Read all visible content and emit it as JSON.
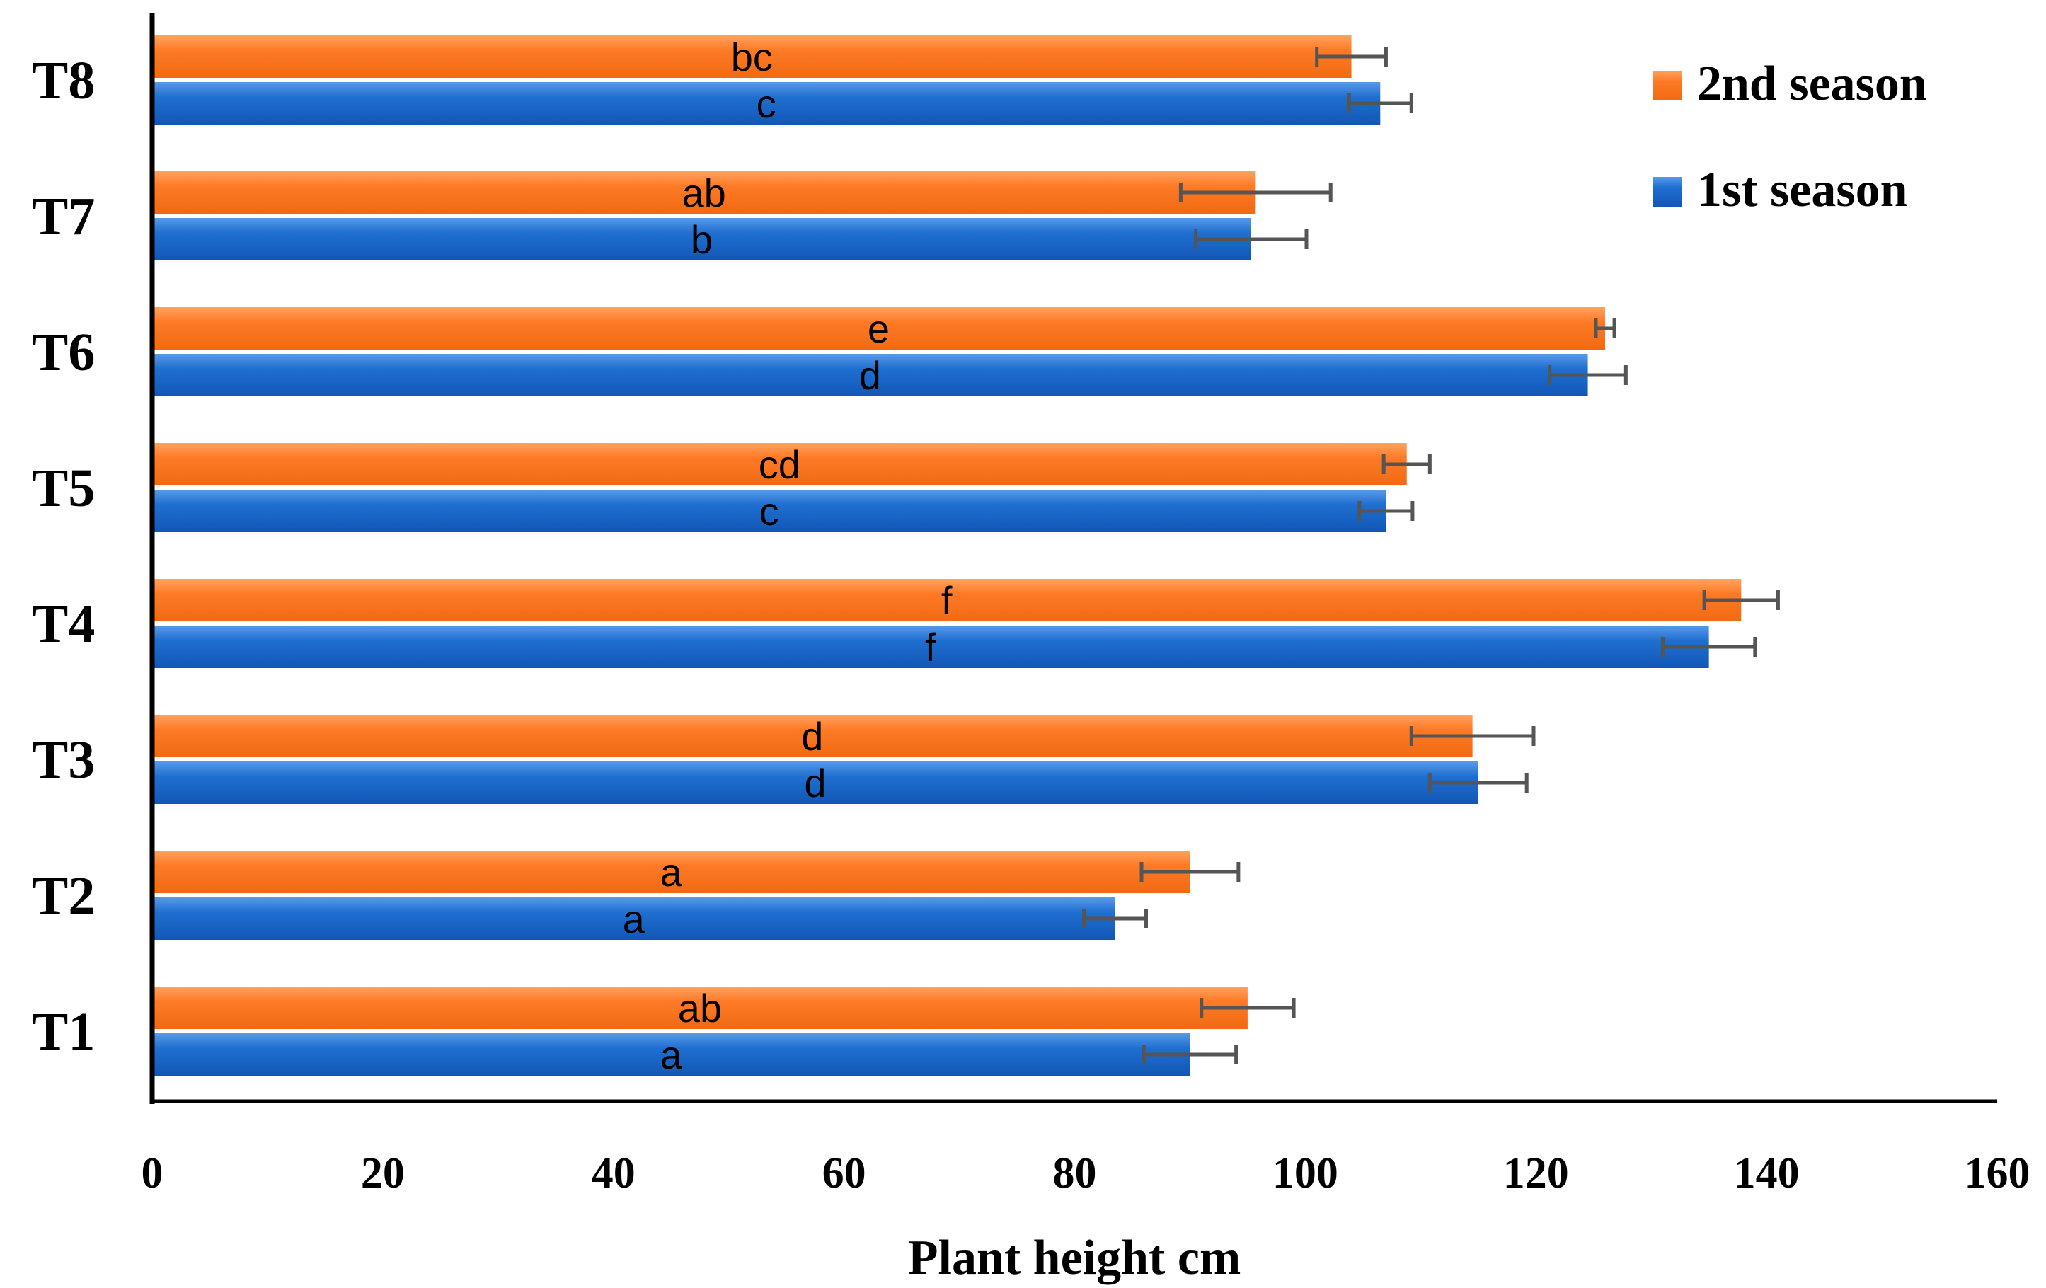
{
  "chart_data": {
    "type": "bar",
    "orientation": "horizontal",
    "title": "",
    "xlabel": "Plant height cm",
    "ylabel": "",
    "xlim": [
      0,
      160
    ],
    "xticks": [
      0,
      20,
      40,
      60,
      80,
      100,
      120,
      140,
      160
    ],
    "categories": [
      "T1",
      "T2",
      "T3",
      "T4",
      "T5",
      "T6",
      "T7",
      "T8"
    ],
    "series": [
      {
        "name": "1st season",
        "color": "#1f6fd1",
        "values": [
          90,
          83.5,
          115,
          135,
          107,
          124.5,
          95.3,
          106.5
        ],
        "errors": [
          4,
          2.7,
          4.2,
          4,
          2.3,
          3.3,
          4.8,
          2.7
        ],
        "letters": [
          "a",
          "a",
          "d",
          "f",
          "c",
          "d",
          "b",
          "c"
        ]
      },
      {
        "name": "2nd season",
        "color": "#ff7a26",
        "values": [
          95,
          90,
          114.5,
          137.8,
          108.8,
          126,
          95.7,
          104
        ],
        "errors": [
          4,
          4.2,
          5.3,
          3.2,
          2,
          0.8,
          6.5,
          3
        ],
        "letters": [
          "ab",
          "a",
          "d",
          "f",
          "cd",
          "e",
          "ab",
          "bc"
        ]
      }
    ],
    "legend": {
      "position": "top-right",
      "entries": [
        "2nd season",
        "1st season"
      ]
    },
    "grid": false
  }
}
